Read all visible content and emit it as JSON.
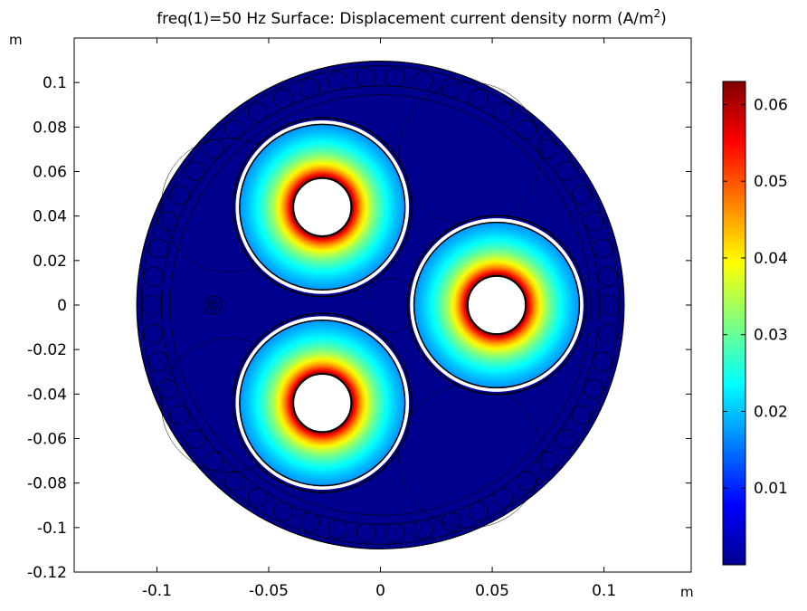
{
  "chart_data": {
    "type": "heatmap",
    "title": {
      "prefix": "freq(1)=50 Hz   Surface: Displacement current density norm (A/m",
      "superscript": "2",
      "suffix": ")"
    },
    "x_unit": "m",
    "y_unit": "m",
    "xlim": [
      -0.137,
      0.139
    ],
    "ylim": [
      -0.12,
      0.12
    ],
    "x_ticks": [
      {
        "value": -0.1,
        "label": "-0.1"
      },
      {
        "value": -0.05,
        "label": "-0.05"
      },
      {
        "value": 0,
        "label": "0"
      },
      {
        "value": 0.05,
        "label": "0.05"
      },
      {
        "value": 0.1,
        "label": "0.1"
      }
    ],
    "y_ticks": [
      {
        "value": 0.1,
        "label": "0.1"
      },
      {
        "value": 0.08,
        "label": "0.08"
      },
      {
        "value": 0.06,
        "label": "0.06"
      },
      {
        "value": 0.04,
        "label": "0.04"
      },
      {
        "value": 0.02,
        "label": "0.02"
      },
      {
        "value": 0,
        "label": "0"
      },
      {
        "value": -0.02,
        "label": "-0.02"
      },
      {
        "value": -0.04,
        "label": "-0.04"
      },
      {
        "value": -0.06,
        "label": "-0.06"
      },
      {
        "value": -0.08,
        "label": "-0.08"
      },
      {
        "value": -0.1,
        "label": "-0.1"
      },
      {
        "value": -0.12,
        "label": "-0.12"
      }
    ],
    "cable": {
      "outer_radius": 0.109,
      "armor_ring_inner_radius": 0.098,
      "armor_wire_count": 50,
      "armor_wire_radius": 0.0045,
      "background_value": 0.0
    },
    "conductors": [
      {
        "cx": -0.026,
        "cy": 0.044,
        "inner_radius": 0.013,
        "outer_radius": 0.037,
        "sheath_radius": 0.04
      },
      {
        "cx": 0.052,
        "cy": 0.0,
        "inner_radius": 0.013,
        "outer_radius": 0.037,
        "sheath_radius": 0.04
      },
      {
        "cx": -0.026,
        "cy": -0.044,
        "inner_radius": 0.013,
        "outer_radius": 0.037,
        "sheath_radius": 0.04
      }
    ],
    "field_profile": {
      "value_at_inner": 0.063,
      "value_at_outer": 0.017
    },
    "small_conductor": {
      "cx": -0.075,
      "cy": 0.0
    },
    "colorbar": {
      "min": 0.0,
      "max": 0.063,
      "colormap": "jet",
      "ticks": [
        {
          "value": 0.06,
          "label": "0.06"
        },
        {
          "value": 0.05,
          "label": "0.05"
        },
        {
          "value": 0.04,
          "label": "0.04"
        },
        {
          "value": 0.03,
          "label": "0.03"
        },
        {
          "value": 0.02,
          "label": "0.02"
        },
        {
          "value": 0.01,
          "label": "0.01"
        }
      ]
    }
  }
}
